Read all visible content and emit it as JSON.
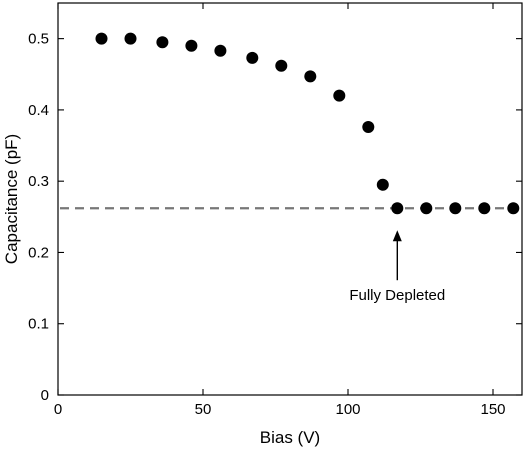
{
  "chart_data": {
    "type": "scatter",
    "title": "",
    "xlabel": "Bias (V)",
    "ylabel": "Capacitance (pF)",
    "xlim": [
      0,
      160
    ],
    "ylim": [
      0,
      0.55
    ],
    "xticks": [
      0,
      50,
      100,
      150
    ],
    "yticks": [
      0,
      0.1,
      0.2,
      0.3,
      0.4,
      0.5
    ],
    "xtick_labels": [
      "0",
      "50",
      "100",
      "150"
    ],
    "ytick_labels": [
      "0",
      "0.1",
      "0.2",
      "0.3",
      "0.4",
      "0.5"
    ],
    "grid": false,
    "series": [
      {
        "x": [
          15,
          25,
          36,
          46,
          56,
          67,
          77,
          87,
          97,
          107,
          112,
          117,
          127,
          137,
          147,
          157
        ],
        "y": [
          0.5,
          0.5,
          0.495,
          0.49,
          0.483,
          0.473,
          0.462,
          0.447,
          0.42,
          0.376,
          0.295,
          0.262,
          0.262,
          0.262,
          0.262,
          0.262
        ],
        "color": "#000000"
      }
    ],
    "reference_line": {
      "y": 0.262,
      "style": "dashed",
      "color": "#777777"
    },
    "annotations": [
      {
        "text": "Fully Depleted",
        "arrow_to": [
          117,
          0.262
        ],
        "text_at": [
          117,
          0.14
        ]
      }
    ]
  }
}
